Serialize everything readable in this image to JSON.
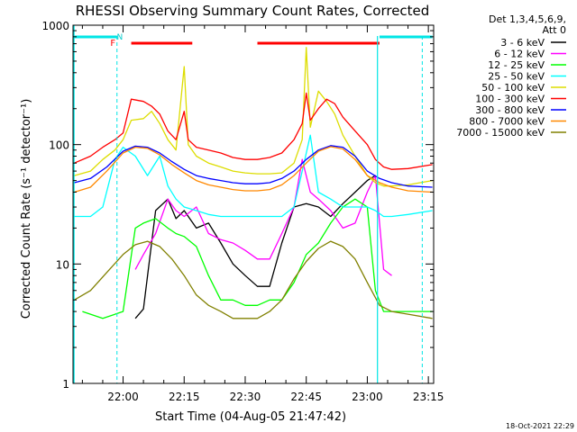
{
  "chart_data": {
    "type": "line",
    "title": "RHESSI Observing Summary Count Rates, Corrected",
    "xlabel": "Start Time (04-Aug-05 21:47:42)",
    "ylabel": "Corrected Count Rate (s⁻¹ detector⁻¹)",
    "yscale": "log",
    "ylim": [
      1,
      1000
    ],
    "xlim_minutes": [
      -12.3,
      76.3
    ],
    "x_ticks": [
      {
        "label": "22:00",
        "minutes": 0
      },
      {
        "label": "22:15",
        "minutes": 15
      },
      {
        "label": "22:30",
        "minutes": 30
      },
      {
        "label": "22:45",
        "minutes": 45
      },
      {
        "label": "23:00",
        "minutes": 60
      },
      {
        "label": "23:15",
        "minutes": 75
      }
    ],
    "y_ticks": [
      {
        "label": "1",
        "value": 1
      },
      {
        "label": "10",
        "value": 10
      },
      {
        "label": "100",
        "value": 100
      },
      {
        "label": "1000",
        "value": 1000
      }
    ],
    "legend_header": [
      "Det 1,3,4,5,6,9,",
      "Att 0"
    ],
    "series": [
      {
        "name": "3 - 6 keV",
        "color": "#000000",
        "x": [
          3,
          5,
          8,
          11,
          13,
          15,
          18,
          21,
          24,
          27,
          30,
          33,
          36,
          39,
          42,
          45,
          48,
          51,
          54,
          57,
          60,
          62
        ],
        "y": [
          3.5,
          4.2,
          28,
          35,
          24,
          28,
          20,
          22,
          15,
          10,
          8,
          6.5,
          6.5,
          15,
          30,
          32,
          30,
          25,
          32,
          40,
          50,
          55
        ]
      },
      {
        "name": "6 - 12 keV",
        "color": "#ff00ff",
        "x": [
          3,
          5,
          8,
          11,
          13,
          15,
          18,
          21,
          24,
          27,
          30,
          33,
          36,
          39,
          42,
          44,
          46,
          48,
          51,
          54,
          57,
          60,
          62,
          64,
          66
        ],
        "y": [
          9,
          12,
          18,
          35,
          28,
          25,
          30,
          18,
          16,
          15,
          13,
          11,
          11,
          18,
          30,
          75,
          40,
          35,
          28,
          20,
          22,
          40,
          55,
          9,
          8
        ]
      },
      {
        "name": "12 - 25 keV",
        "color": "#00ff00",
        "x": [
          -10,
          -5,
          0,
          3,
          5,
          8,
          11,
          13,
          15,
          18,
          21,
          24,
          27,
          30,
          33,
          36,
          39,
          42,
          45,
          48,
          51,
          54,
          57,
          60,
          62,
          64,
          66,
          70,
          76
        ],
        "y": [
          4,
          3.5,
          4,
          20,
          22,
          24,
          20,
          18,
          17,
          14,
          8,
          5,
          5,
          4.5,
          4.5,
          5,
          5,
          7,
          12,
          15,
          22,
          30,
          35,
          30,
          6,
          4,
          4,
          4,
          4
        ]
      },
      {
        "name": "25 - 50 keV",
        "color": "#00ffff",
        "x": [
          -12,
          -8,
          -5,
          -2,
          0,
          3,
          6,
          9,
          11,
          13,
          15,
          18,
          21,
          24,
          27,
          30,
          33,
          36,
          39,
          42,
          44,
          46,
          48,
          51,
          54,
          57,
          60,
          62,
          64,
          66,
          70,
          76
        ],
        "y": [
          25,
          25,
          30,
          75,
          95,
          80,
          55,
          80,
          45,
          35,
          30,
          28,
          26,
          25,
          25,
          25,
          25,
          25,
          25,
          30,
          60,
          120,
          40,
          35,
          30,
          30,
          30,
          28,
          25,
          25,
          26,
          28
        ]
      },
      {
        "name": "50 - 100 keV",
        "color": "#dddd00",
        "x": [
          -12,
          -8,
          -5,
          -2,
          0,
          2,
          5,
          7,
          9,
          11,
          13,
          15,
          16,
          18,
          21,
          24,
          27,
          30,
          33,
          36,
          39,
          42,
          44,
          45,
          46,
          48,
          50,
          52,
          54,
          57,
          60,
          62,
          64,
          66,
          70,
          76
        ],
        "y": [
          55,
          60,
          75,
          90,
          110,
          160,
          165,
          190,
          150,
          110,
          90,
          450,
          100,
          80,
          70,
          65,
          60,
          58,
          57,
          57,
          58,
          70,
          110,
          650,
          140,
          280,
          230,
          180,
          120,
          80,
          55,
          48,
          45,
          45,
          46,
          50
        ]
      },
      {
        "name": "100 - 300 keV",
        "color": "#ff0000",
        "x": [
          -12,
          -8,
          -5,
          -2,
          0,
          2,
          5,
          7,
          9,
          11,
          13,
          15,
          16,
          18,
          21,
          24,
          27,
          30,
          33,
          36,
          39,
          42,
          44,
          45,
          46,
          48,
          50,
          52,
          54,
          57,
          60,
          62,
          64,
          66,
          70,
          76
        ],
        "y": [
          70,
          80,
          95,
          110,
          125,
          240,
          230,
          210,
          180,
          130,
          110,
          190,
          110,
          95,
          90,
          85,
          78,
          75,
          75,
          78,
          85,
          110,
          150,
          270,
          160,
          200,
          240,
          220,
          170,
          130,
          100,
          75,
          65,
          62,
          63,
          68
        ]
      },
      {
        "name": "300 - 800 keV",
        "color": "#0000ff",
        "x": [
          -12,
          -8,
          -4,
          0,
          3,
          6,
          9,
          12,
          15,
          18,
          21,
          24,
          27,
          30,
          33,
          36,
          39,
          42,
          45,
          48,
          51,
          54,
          57,
          60,
          63,
          66,
          70,
          76
        ],
        "y": [
          48,
          52,
          65,
          88,
          97,
          95,
          85,
          72,
          62,
          55,
          52,
          50,
          48,
          47,
          47,
          48,
          52,
          60,
          75,
          90,
          98,
          95,
          80,
          60,
          52,
          48,
          45,
          44
        ]
      },
      {
        "name": "800 - 7000 keV",
        "color": "#ff8800",
        "x": [
          -12,
          -8,
          -4,
          0,
          3,
          6,
          9,
          12,
          15,
          18,
          21,
          24,
          27,
          30,
          33,
          36,
          39,
          42,
          45,
          48,
          51,
          54,
          57,
          60,
          63,
          66,
          70,
          76
        ],
        "y": [
          40,
          44,
          60,
          85,
          95,
          93,
          82,
          68,
          58,
          50,
          46,
          44,
          42,
          41,
          41,
          42,
          46,
          55,
          70,
          88,
          96,
          92,
          75,
          55,
          48,
          44,
          41,
          40
        ]
      },
      {
        "name": "7000 - 15000 keV",
        "color": "#808000",
        "x": [
          -12,
          -8,
          -4,
          0,
          3,
          6,
          9,
          12,
          15,
          18,
          21,
          24,
          27,
          30,
          33,
          36,
          39,
          42,
          45,
          48,
          51,
          54,
          57,
          60,
          63,
          66,
          70,
          76
        ],
        "y": [
          5,
          6,
          8.5,
          12,
          14.5,
          15.5,
          14,
          11,
          8,
          5.5,
          4.5,
          4,
          3.5,
          3.5,
          3.5,
          4,
          5,
          7.5,
          10.5,
          13.5,
          15.5,
          14,
          11,
          7,
          4.5,
          4,
          3.8,
          3.5
        ]
      }
    ],
    "annotations": [
      {
        "text": "F",
        "color": "#ff0000"
      },
      {
        "text": "N",
        "color": "#00cccc"
      }
    ],
    "flag_bars": {
      "night_cyan": [
        [
          -12,
          -1.5
        ],
        [
          63,
          76
        ]
      ],
      "flare_red": [
        [
          2,
          17
        ],
        [
          33,
          63
        ]
      ]
    },
    "vertical_markers": [
      -1.5,
      62.5,
      73.5
    ]
  },
  "footer": {
    "timestamp": "18-Oct-2021 22:29"
  }
}
